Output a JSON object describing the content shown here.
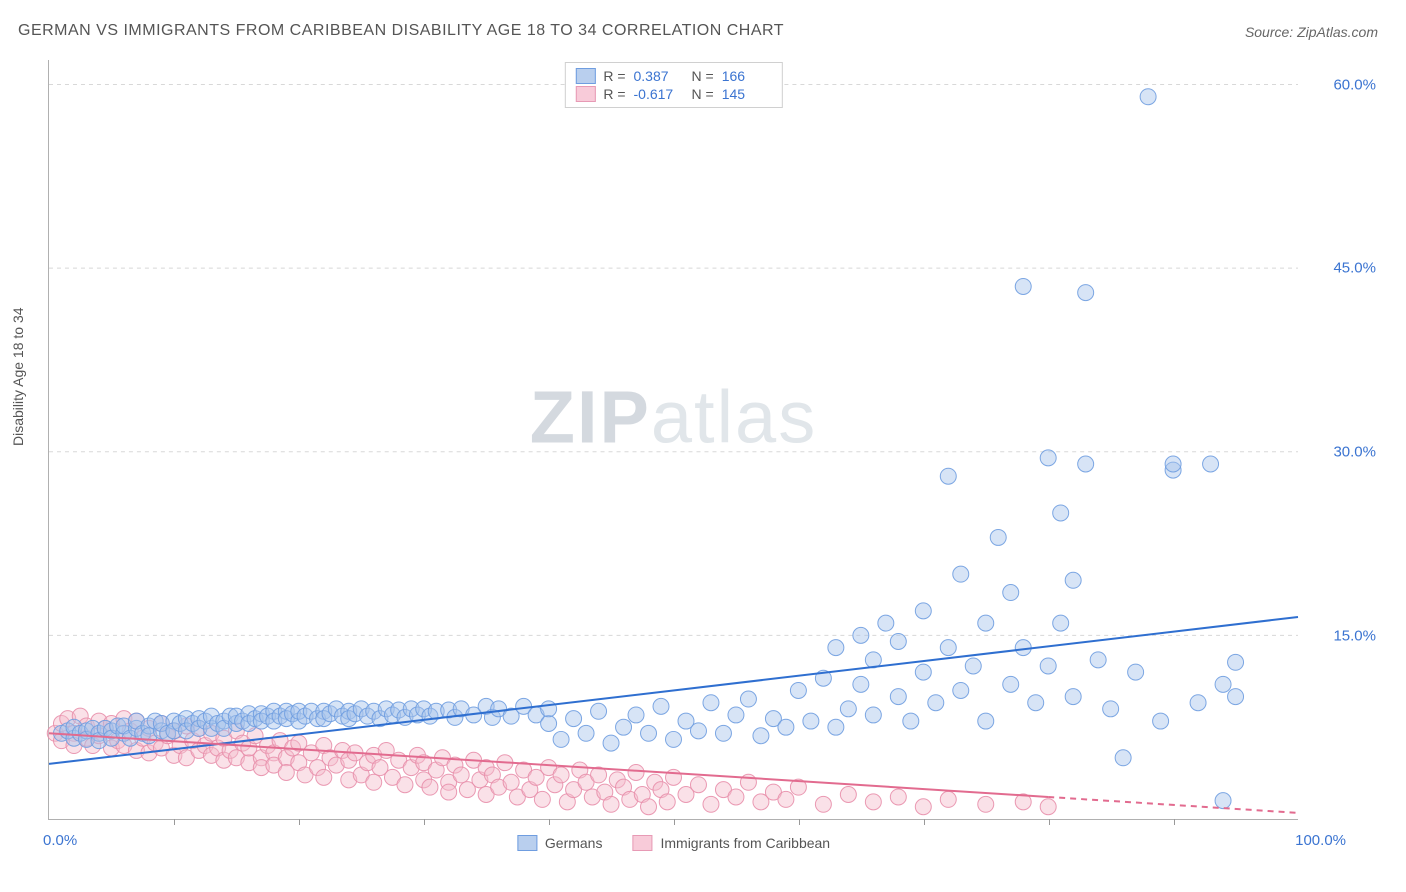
{
  "title": "GERMAN VS IMMIGRANTS FROM CARIBBEAN DISABILITY AGE 18 TO 34 CORRELATION CHART",
  "source": "Source: ZipAtlas.com",
  "ylabel": "Disability Age 18 to 34",
  "watermark_a": "ZIP",
  "watermark_b": "atlas",
  "chart": {
    "type": "scatter-with-regression",
    "xlim": [
      0,
      100
    ],
    "ylim": [
      0,
      62
    ],
    "x_axis_label_left": "0.0%",
    "x_axis_label_right": "100.0%",
    "y_ticks": [
      15.0,
      30.0,
      45.0,
      60.0
    ],
    "y_tick_labels": [
      "15.0%",
      "30.0%",
      "45.0%",
      "60.0%"
    ],
    "x_minor_ticks": [
      10,
      20,
      30,
      40,
      50,
      60,
      70,
      80,
      90
    ],
    "grid_color": "#d8d8d8",
    "background_color": "#ffffff",
    "axis_color": "#b0b0b0",
    "marker_radius": 8,
    "marker_opacity": 0.45,
    "marker_stroke_opacity": 0.9,
    "line_width": 2,
    "series": {
      "germans": {
        "label": "Germans",
        "color_fill": "#a6c4ec",
        "color_stroke": "#6f9de0",
        "line_color": "#2f6fd0",
        "R": 0.387,
        "N": 166,
        "regression": {
          "x0": 0,
          "y0": 4.5,
          "x1": 100,
          "y1": 16.5
        },
        "points": [
          [
            1,
            7.0
          ],
          [
            1.5,
            7.2
          ],
          [
            2,
            6.6
          ],
          [
            2,
            7.5
          ],
          [
            2.5,
            7.0
          ],
          [
            3,
            7.2
          ],
          [
            3,
            6.5
          ],
          [
            3.5,
            7.4
          ],
          [
            4,
            7.0
          ],
          [
            4,
            6.4
          ],
          [
            4.5,
            7.4
          ],
          [
            5,
            7.2
          ],
          [
            5,
            6.6
          ],
          [
            5.5,
            7.6
          ],
          [
            6,
            7.0
          ],
          [
            6,
            7.6
          ],
          [
            6.5,
            6.6
          ],
          [
            7,
            7.4
          ],
          [
            7,
            8.0
          ],
          [
            7.5,
            7.0
          ],
          [
            8,
            7.6
          ],
          [
            8,
            6.8
          ],
          [
            8.5,
            8.0
          ],
          [
            9,
            7.2
          ],
          [
            9,
            7.8
          ],
          [
            9.5,
            7.0
          ],
          [
            10,
            8.0
          ],
          [
            10,
            7.2
          ],
          [
            10.5,
            7.8
          ],
          [
            11,
            8.2
          ],
          [
            11,
            7.2
          ],
          [
            11.5,
            7.8
          ],
          [
            12,
            8.2
          ],
          [
            12,
            7.4
          ],
          [
            12.5,
            8.0
          ],
          [
            13,
            7.4
          ],
          [
            13,
            8.4
          ],
          [
            13.5,
            7.8
          ],
          [
            14,
            8.0
          ],
          [
            14,
            7.4
          ],
          [
            14.5,
            8.4
          ],
          [
            15,
            7.8
          ],
          [
            15,
            8.4
          ],
          [
            15.5,
            8.0
          ],
          [
            16,
            8.6
          ],
          [
            16,
            7.8
          ],
          [
            16.5,
            8.2
          ],
          [
            17,
            8.6
          ],
          [
            17,
            8.0
          ],
          [
            17.5,
            8.4
          ],
          [
            18,
            8.8
          ],
          [
            18,
            8.0
          ],
          [
            18.5,
            8.4
          ],
          [
            19,
            8.8
          ],
          [
            19,
            8.2
          ],
          [
            19.5,
            8.6
          ],
          [
            20,
            8.0
          ],
          [
            20,
            8.8
          ],
          [
            20.5,
            8.4
          ],
          [
            21,
            8.8
          ],
          [
            21.5,
            8.2
          ],
          [
            22,
            8.8
          ],
          [
            22,
            8.2
          ],
          [
            22.5,
            8.6
          ],
          [
            23,
            9.0
          ],
          [
            23.5,
            8.4
          ],
          [
            24,
            8.8
          ],
          [
            24,
            8.2
          ],
          [
            24.5,
            8.6
          ],
          [
            25,
            9.0
          ],
          [
            25.5,
            8.4
          ],
          [
            26,
            8.8
          ],
          [
            26.5,
            8.2
          ],
          [
            27,
            9.0
          ],
          [
            27.5,
            8.5
          ],
          [
            28,
            8.9
          ],
          [
            28.5,
            8.3
          ],
          [
            29,
            9.0
          ],
          [
            29.5,
            8.5
          ],
          [
            30,
            9.0
          ],
          [
            30.5,
            8.4
          ],
          [
            31,
            8.8
          ],
          [
            32,
            8.9
          ],
          [
            32.5,
            8.3
          ],
          [
            33,
            9.0
          ],
          [
            34,
            8.5
          ],
          [
            35,
            9.2
          ],
          [
            35.5,
            8.3
          ],
          [
            36,
            9.0
          ],
          [
            37,
            8.4
          ],
          [
            38,
            9.2
          ],
          [
            39,
            8.5
          ],
          [
            40,
            7.8
          ],
          [
            40,
            9.0
          ],
          [
            41,
            6.5
          ],
          [
            42,
            8.2
          ],
          [
            43,
            7.0
          ],
          [
            44,
            8.8
          ],
          [
            45,
            6.2
          ],
          [
            46,
            7.5
          ],
          [
            47,
            8.5
          ],
          [
            48,
            7.0
          ],
          [
            49,
            9.2
          ],
          [
            50,
            6.5
          ],
          [
            51,
            8.0
          ],
          [
            52,
            7.2
          ],
          [
            53,
            9.5
          ],
          [
            54,
            7.0
          ],
          [
            55,
            8.5
          ],
          [
            56,
            9.8
          ],
          [
            57,
            6.8
          ],
          [
            58,
            8.2
          ],
          [
            59,
            7.5
          ],
          [
            60,
            10.5
          ],
          [
            61,
            8.0
          ],
          [
            62,
            11.5
          ],
          [
            63,
            7.5
          ],
          [
            63,
            14.0
          ],
          [
            64,
            9.0
          ],
          [
            65,
            15.0
          ],
          [
            65,
            11.0
          ],
          [
            66,
            8.5
          ],
          [
            66,
            13.0
          ],
          [
            67,
            16.0
          ],
          [
            68,
            10.0
          ],
          [
            68,
            14.5
          ],
          [
            69,
            8.0
          ],
          [
            70,
            12.0
          ],
          [
            70,
            17.0
          ],
          [
            71,
            9.5
          ],
          [
            72,
            14.0
          ],
          [
            72,
            28.0
          ],
          [
            73,
            10.5
          ],
          [
            73,
            20.0
          ],
          [
            74,
            12.5
          ],
          [
            75,
            16.0
          ],
          [
            75,
            8.0
          ],
          [
            76,
            23.0
          ],
          [
            77,
            11.0
          ],
          [
            77,
            18.5
          ],
          [
            78,
            14.0
          ],
          [
            78,
            43.5
          ],
          [
            79,
            9.5
          ],
          [
            80,
            29.5
          ],
          [
            80,
            12.5
          ],
          [
            81,
            25.0
          ],
          [
            81,
            16.0
          ],
          [
            82,
            10.0
          ],
          [
            82,
            19.5
          ],
          [
            83,
            29.0
          ],
          [
            83,
            43.0
          ],
          [
            84,
            13.0
          ],
          [
            85,
            9.0
          ],
          [
            86,
            5.0
          ],
          [
            87,
            12.0
          ],
          [
            88,
            59.0
          ],
          [
            89,
            8.0
          ],
          [
            90,
            28.5
          ],
          [
            90,
            29.0
          ],
          [
            92,
            9.5
          ],
          [
            93,
            29.0
          ],
          [
            94,
            11.0
          ],
          [
            94,
            1.5
          ],
          [
            95,
            12.8
          ],
          [
            95,
            10
          ]
        ]
      },
      "caribbean": {
        "label": "Immigrants from Caribbean",
        "color_fill": "#f4bccc",
        "color_stroke": "#e88fab",
        "line_color": "#e26b8f",
        "R": -0.617,
        "N": 145,
        "regression_solid": {
          "x0": 0,
          "y0": 7.0,
          "x1": 80,
          "y1": 1.8
        },
        "regression_dashed": {
          "x0": 80,
          "y0": 1.8,
          "x1": 100,
          "y1": 0.5
        },
        "points": [
          [
            0.5,
            7.0
          ],
          [
            1,
            7.8
          ],
          [
            1,
            6.4
          ],
          [
            1.5,
            8.2
          ],
          [
            2,
            7.0
          ],
          [
            2,
            6.0
          ],
          [
            2.5,
            8.4
          ],
          [
            3,
            6.6
          ],
          [
            3,
            7.6
          ],
          [
            3.5,
            6.0
          ],
          [
            4,
            8.0
          ],
          [
            4,
            6.8
          ],
          [
            4.5,
            7.4
          ],
          [
            5,
            5.8
          ],
          [
            5,
            7.8
          ],
          [
            5.5,
            6.4
          ],
          [
            6,
            8.2
          ],
          [
            6,
            6.0
          ],
          [
            6.5,
            7.2
          ],
          [
            7,
            5.6
          ],
          [
            7,
            8.0
          ],
          [
            7.5,
            6.6
          ],
          [
            8,
            7.4
          ],
          [
            8,
            5.4
          ],
          [
            8.5,
            6.2
          ],
          [
            9,
            7.8
          ],
          [
            9,
            5.8
          ],
          [
            9.5,
            6.8
          ],
          [
            10,
            5.2
          ],
          [
            10,
            7.2
          ],
          [
            10.5,
            6.0
          ],
          [
            11,
            7.6
          ],
          [
            11,
            5.0
          ],
          [
            11.5,
            6.4
          ],
          [
            12,
            5.6
          ],
          [
            12,
            7.4
          ],
          [
            12.5,
            6.0
          ],
          [
            13,
            5.2
          ],
          [
            13,
            7.0
          ],
          [
            13.5,
            5.8
          ],
          [
            14,
            6.6
          ],
          [
            14,
            4.8
          ],
          [
            14.5,
            5.6
          ],
          [
            15,
            7.2
          ],
          [
            15,
            5.0
          ],
          [
            15.5,
            6.2
          ],
          [
            16,
            4.6
          ],
          [
            16,
            5.8
          ],
          [
            16.5,
            6.8
          ],
          [
            17,
            5.0
          ],
          [
            17,
            4.2
          ],
          [
            17.5,
            6.0
          ],
          [
            18,
            5.4
          ],
          [
            18,
            4.4
          ],
          [
            18.5,
            6.4
          ],
          [
            19,
            5.0
          ],
          [
            19,
            3.8
          ],
          [
            19.5,
            5.8
          ],
          [
            20,
            4.6
          ],
          [
            20,
            6.2
          ],
          [
            20.5,
            3.6
          ],
          [
            21,
            5.4
          ],
          [
            21.5,
            4.2
          ],
          [
            22,
            6.0
          ],
          [
            22,
            3.4
          ],
          [
            22.5,
            5.0
          ],
          [
            23,
            4.4
          ],
          [
            23.5,
            5.6
          ],
          [
            24,
            3.2
          ],
          [
            24,
            4.8
          ],
          [
            24.5,
            5.4
          ],
          [
            25,
            3.6
          ],
          [
            25.5,
            4.6
          ],
          [
            26,
            5.2
          ],
          [
            26,
            3.0
          ],
          [
            26.5,
            4.2
          ],
          [
            27,
            5.6
          ],
          [
            27.5,
            3.4
          ],
          [
            28,
            4.8
          ],
          [
            28.5,
            2.8
          ],
          [
            29,
            4.2
          ],
          [
            29.5,
            5.2
          ],
          [
            30,
            3.2
          ],
          [
            30,
            4.6
          ],
          [
            30.5,
            2.6
          ],
          [
            31,
            4.0
          ],
          [
            31.5,
            5.0
          ],
          [
            32,
            3.0
          ],
          [
            32,
            2.2
          ],
          [
            32.5,
            4.4
          ],
          [
            33,
            3.6
          ],
          [
            33.5,
            2.4
          ],
          [
            34,
            4.8
          ],
          [
            34.5,
            3.2
          ],
          [
            35,
            2.0
          ],
          [
            35,
            4.2
          ],
          [
            35.5,
            3.6
          ],
          [
            36,
            2.6
          ],
          [
            36.5,
            4.6
          ],
          [
            37,
            3.0
          ],
          [
            37.5,
            1.8
          ],
          [
            38,
            4.0
          ],
          [
            38.5,
            2.4
          ],
          [
            39,
            3.4
          ],
          [
            39.5,
            1.6
          ],
          [
            40,
            4.2
          ],
          [
            40.5,
            2.8
          ],
          [
            41,
            3.6
          ],
          [
            41.5,
            1.4
          ],
          [
            42,
            2.4
          ],
          [
            42.5,
            4.0
          ],
          [
            43,
            3.0
          ],
          [
            43.5,
            1.8
          ],
          [
            44,
            3.6
          ],
          [
            44.5,
            2.2
          ],
          [
            45,
            1.2
          ],
          [
            45.5,
            3.2
          ],
          [
            46,
            2.6
          ],
          [
            46.5,
            1.6
          ],
          [
            47,
            3.8
          ],
          [
            47.5,
            2.0
          ],
          [
            48,
            1.0
          ],
          [
            48.5,
            3.0
          ],
          [
            49,
            2.4
          ],
          [
            49.5,
            1.4
          ],
          [
            50,
            3.4
          ],
          [
            51,
            2.0
          ],
          [
            52,
            2.8
          ],
          [
            53,
            1.2
          ],
          [
            54,
            2.4
          ],
          [
            55,
            1.8
          ],
          [
            56,
            3.0
          ],
          [
            57,
            1.4
          ],
          [
            58,
            2.2
          ],
          [
            59,
            1.6
          ],
          [
            60,
            2.6
          ],
          [
            62,
            1.2
          ],
          [
            64,
            2.0
          ],
          [
            66,
            1.4
          ],
          [
            68,
            1.8
          ],
          [
            70,
            1.0
          ],
          [
            72,
            1.6
          ],
          [
            75,
            1.2
          ],
          [
            78,
            1.4
          ],
          [
            80,
            1.0
          ]
        ]
      }
    }
  },
  "statbox": {
    "row1": {
      "R_label": "R =",
      "R_val": "0.387",
      "N_label": "N =",
      "N_val": "166"
    },
    "row2": {
      "R_label": "R =",
      "R_val": "-0.617",
      "N_label": "N =",
      "N_val": "145"
    }
  }
}
